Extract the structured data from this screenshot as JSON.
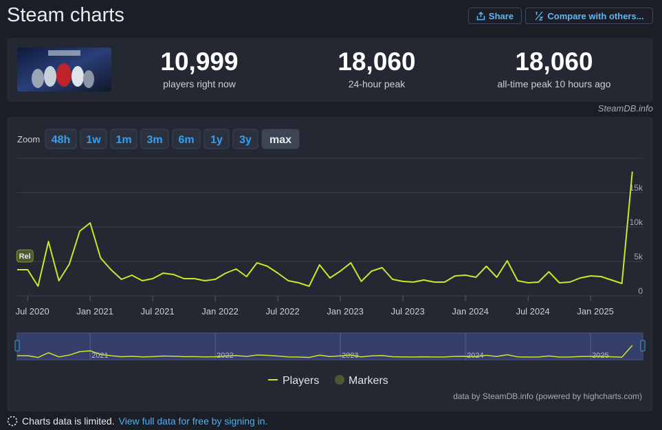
{
  "header": {
    "title": "Steam charts",
    "share": "Share",
    "compare": "Compare with others..."
  },
  "stats": [
    {
      "value": "10,999",
      "label": "players right now"
    },
    {
      "value": "18,060",
      "label": "24-hour peak"
    },
    {
      "value": "18,060",
      "label": "all-time peak 10 hours ago"
    }
  ],
  "source": "SteamDB.info",
  "zoom": {
    "label": "Zoom",
    "options": [
      "48h",
      "1w",
      "1m",
      "3m",
      "6m",
      "1y",
      "3y",
      "max"
    ],
    "active": "max"
  },
  "chart_data": {
    "type": "line",
    "x": [
      "2020-06",
      "2020-07",
      "2020-08",
      "2020-09",
      "2020-10",
      "2020-11",
      "2020-12",
      "2021-01",
      "2021-02",
      "2021-03",
      "2021-04",
      "2021-05",
      "2021-06",
      "2021-07",
      "2021-08",
      "2021-09",
      "2021-10",
      "2021-11",
      "2021-12",
      "2022-01",
      "2022-02",
      "2022-03",
      "2022-04",
      "2022-05",
      "2022-06",
      "2022-07",
      "2022-08",
      "2022-09",
      "2022-10",
      "2022-11",
      "2022-12",
      "2023-01",
      "2023-02",
      "2023-03",
      "2023-04",
      "2023-05",
      "2023-06",
      "2023-07",
      "2023-08",
      "2023-09",
      "2023-10",
      "2023-11",
      "2023-12",
      "2024-01",
      "2024-02",
      "2024-03",
      "2024-04",
      "2024-05",
      "2024-06",
      "2024-07",
      "2024-08",
      "2024-09",
      "2024-10",
      "2024-11",
      "2024-12",
      "2025-01",
      "2025-02",
      "2025-03",
      "2025-04",
      "2025-05"
    ],
    "series": [
      {
        "name": "Players",
        "color": "#cde826",
        "values": [
          3800,
          3800,
          1400,
          7900,
          2200,
          4600,
          9400,
          10600,
          5500,
          3800,
          2400,
          3000,
          2200,
          2500,
          3300,
          3100,
          2500,
          2500,
          2200,
          2400,
          3300,
          3900,
          2800,
          4800,
          4300,
          3300,
          2200,
          1900,
          1400,
          4500,
          2600,
          3600,
          4800,
          2100,
          3600,
          4100,
          2400,
          2100,
          2000,
          2300,
          2000,
          2000,
          2900,
          3000,
          2700,
          4300,
          2700,
          5100,
          2200,
          1900,
          2000,
          3500,
          1900,
          2000,
          2600,
          2900,
          2800,
          2300,
          1800,
          18060
        ]
      }
    ],
    "markers": {
      "name": "Markers",
      "color": "#4b5a33",
      "points": [
        {
          "x": "2020-07",
          "label": "Rel"
        }
      ]
    },
    "xlim": [
      "2020-06",
      "2025-06"
    ],
    "xticks": [
      {
        "value": "2020-07",
        "label": "Jul 2020"
      },
      {
        "value": "2021-01",
        "label": "Jan 2021"
      },
      {
        "value": "2021-07",
        "label": "Jul 2021"
      },
      {
        "value": "2022-01",
        "label": "Jan 2022"
      },
      {
        "value": "2022-07",
        "label": "Jul 2022"
      },
      {
        "value": "2023-01",
        "label": "Jan 2023"
      },
      {
        "value": "2023-07",
        "label": "Jul 2023"
      },
      {
        "value": "2024-01",
        "label": "Jan 2024"
      },
      {
        "value": "2024-07",
        "label": "Jul 2024"
      },
      {
        "value": "2025-01",
        "label": "Jan 2025"
      }
    ],
    "ylim": [
      0,
      20000
    ],
    "yticks": [
      0,
      {
        "value": 5000,
        "label": "5k"
      },
      {
        "value": 10000,
        "label": "10k"
      },
      {
        "value": 15000,
        "label": "15k"
      }
    ],
    "grid": true,
    "navigator_ticks": [
      {
        "value": "2021-01",
        "label": "2021"
      },
      {
        "value": "2022-01",
        "label": "2022"
      },
      {
        "value": "2023-01",
        "label": "2023"
      },
      {
        "value": "2024-01",
        "label": "2024"
      },
      {
        "value": "2025-01",
        "label": "2025"
      }
    ],
    "credits": "data by SteamDB.info (powered by highcharts.com)"
  },
  "footer": {
    "notice": "Charts data is limited.",
    "link": "View full data for free by signing in."
  }
}
